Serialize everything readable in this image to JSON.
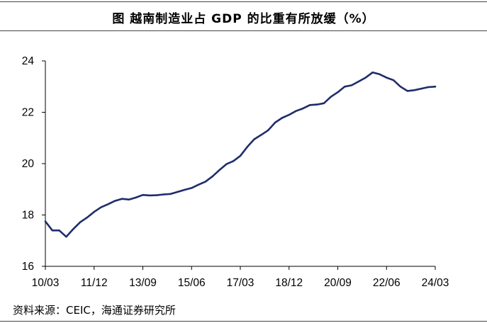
{
  "header": {
    "title": "图  越南制造业占 GDP 的比重有所放缓（%）"
  },
  "footer": {
    "source": "资料来源：CEIC，海通证券研究所"
  },
  "chart_data": {
    "type": "line",
    "title": "越南制造业占 GDP 的比重有所放缓（%）",
    "xlabel": "",
    "ylabel": "",
    "ylim": [
      16,
      24
    ],
    "yticks": [
      16,
      18,
      20,
      22,
      24
    ],
    "xtick_labels": [
      "10/03",
      "11/12",
      "13/09",
      "15/06",
      "17/03",
      "18/12",
      "20/09",
      "22/06",
      "24/03"
    ],
    "grid": false,
    "legend": "none",
    "line_color": "#1f2d6b",
    "series": [
      {
        "x": [
          "10/03",
          "10/06",
          "10/09",
          "10/12",
          "11/03",
          "11/06",
          "11/09",
          "11/12",
          "12/03",
          "12/06",
          "12/09",
          "12/12",
          "13/03",
          "13/06",
          "13/09",
          "13/12",
          "14/03",
          "14/06",
          "14/09",
          "14/12",
          "15/03",
          "15/06",
          "15/09",
          "15/12",
          "16/03",
          "16/06",
          "16/09",
          "16/12",
          "17/03",
          "17/06",
          "17/09",
          "17/12",
          "18/03",
          "18/06",
          "18/09",
          "18/12",
          "19/03",
          "19/06",
          "19/09",
          "19/12",
          "20/03",
          "20/06",
          "20/09",
          "20/12",
          "21/03",
          "21/06",
          "21/09",
          "21/12",
          "22/03",
          "22/06",
          "22/09",
          "22/12",
          "23/03",
          "23/06",
          "23/09",
          "23/12",
          "24/03"
        ],
        "values": [
          17.75,
          17.4,
          17.4,
          17.15,
          17.45,
          17.72,
          17.9,
          18.12,
          18.3,
          18.42,
          18.55,
          18.63,
          18.6,
          18.68,
          18.78,
          18.76,
          18.77,
          18.8,
          18.82,
          18.9,
          18.98,
          19.05,
          19.18,
          19.3,
          19.5,
          19.75,
          19.98,
          20.1,
          20.3,
          20.65,
          20.95,
          21.12,
          21.3,
          21.6,
          21.78,
          21.9,
          22.05,
          22.15,
          22.28,
          22.3,
          22.35,
          22.6,
          22.78,
          23.0,
          23.05,
          23.2,
          23.35,
          23.55,
          23.48,
          23.35,
          23.25,
          23.0,
          22.83,
          22.86,
          22.92,
          22.98,
          23.0
        ]
      }
    ]
  }
}
